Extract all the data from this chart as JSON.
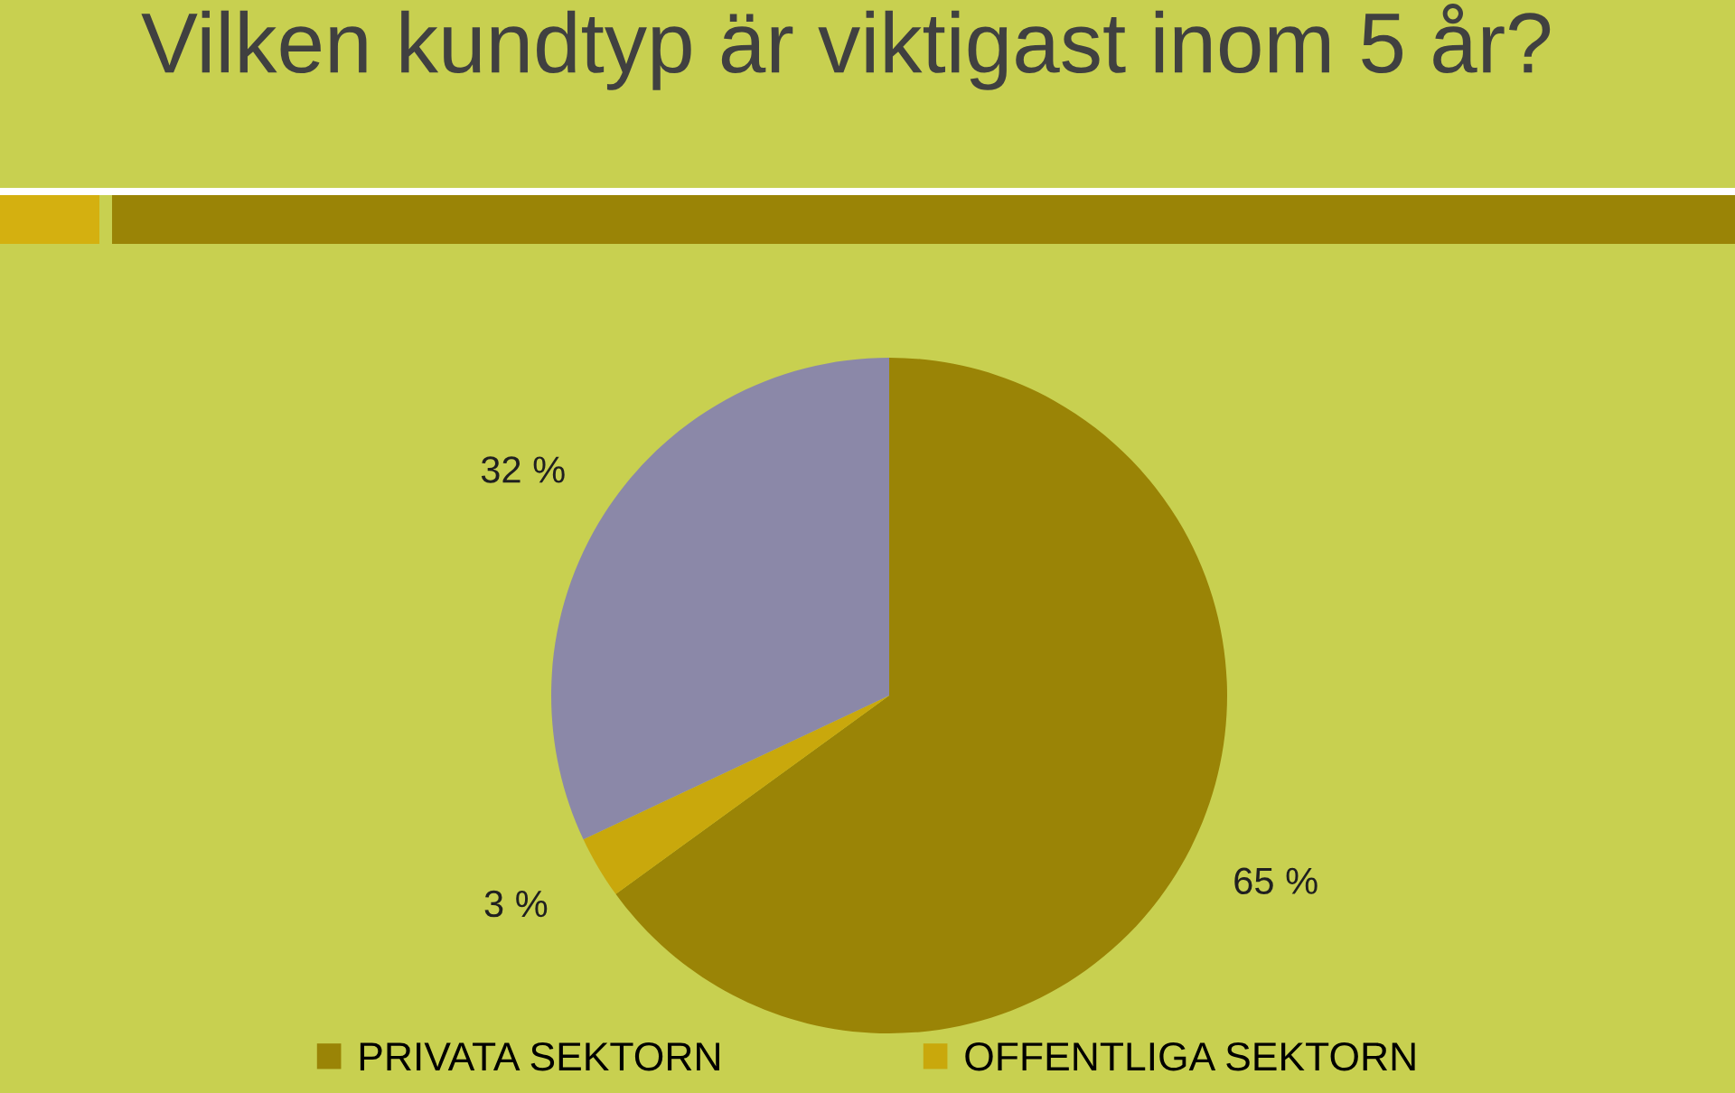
{
  "chart_data": {
    "type": "pie",
    "title": "Vilken kundtyp är viktigast inom 5 år?",
    "categories": [
      "PRIVATA SEKTORN",
      "OFFENTLIGA SEKTORN",
      null
    ],
    "values": [
      65,
      3,
      32
    ],
    "colors": [
      "#9a8406",
      "#c9a80c",
      "#8b88a8"
    ],
    "value_labels": [
      "65 %",
      "3 %",
      "32 %"
    ],
    "legend": "bottom"
  }
}
